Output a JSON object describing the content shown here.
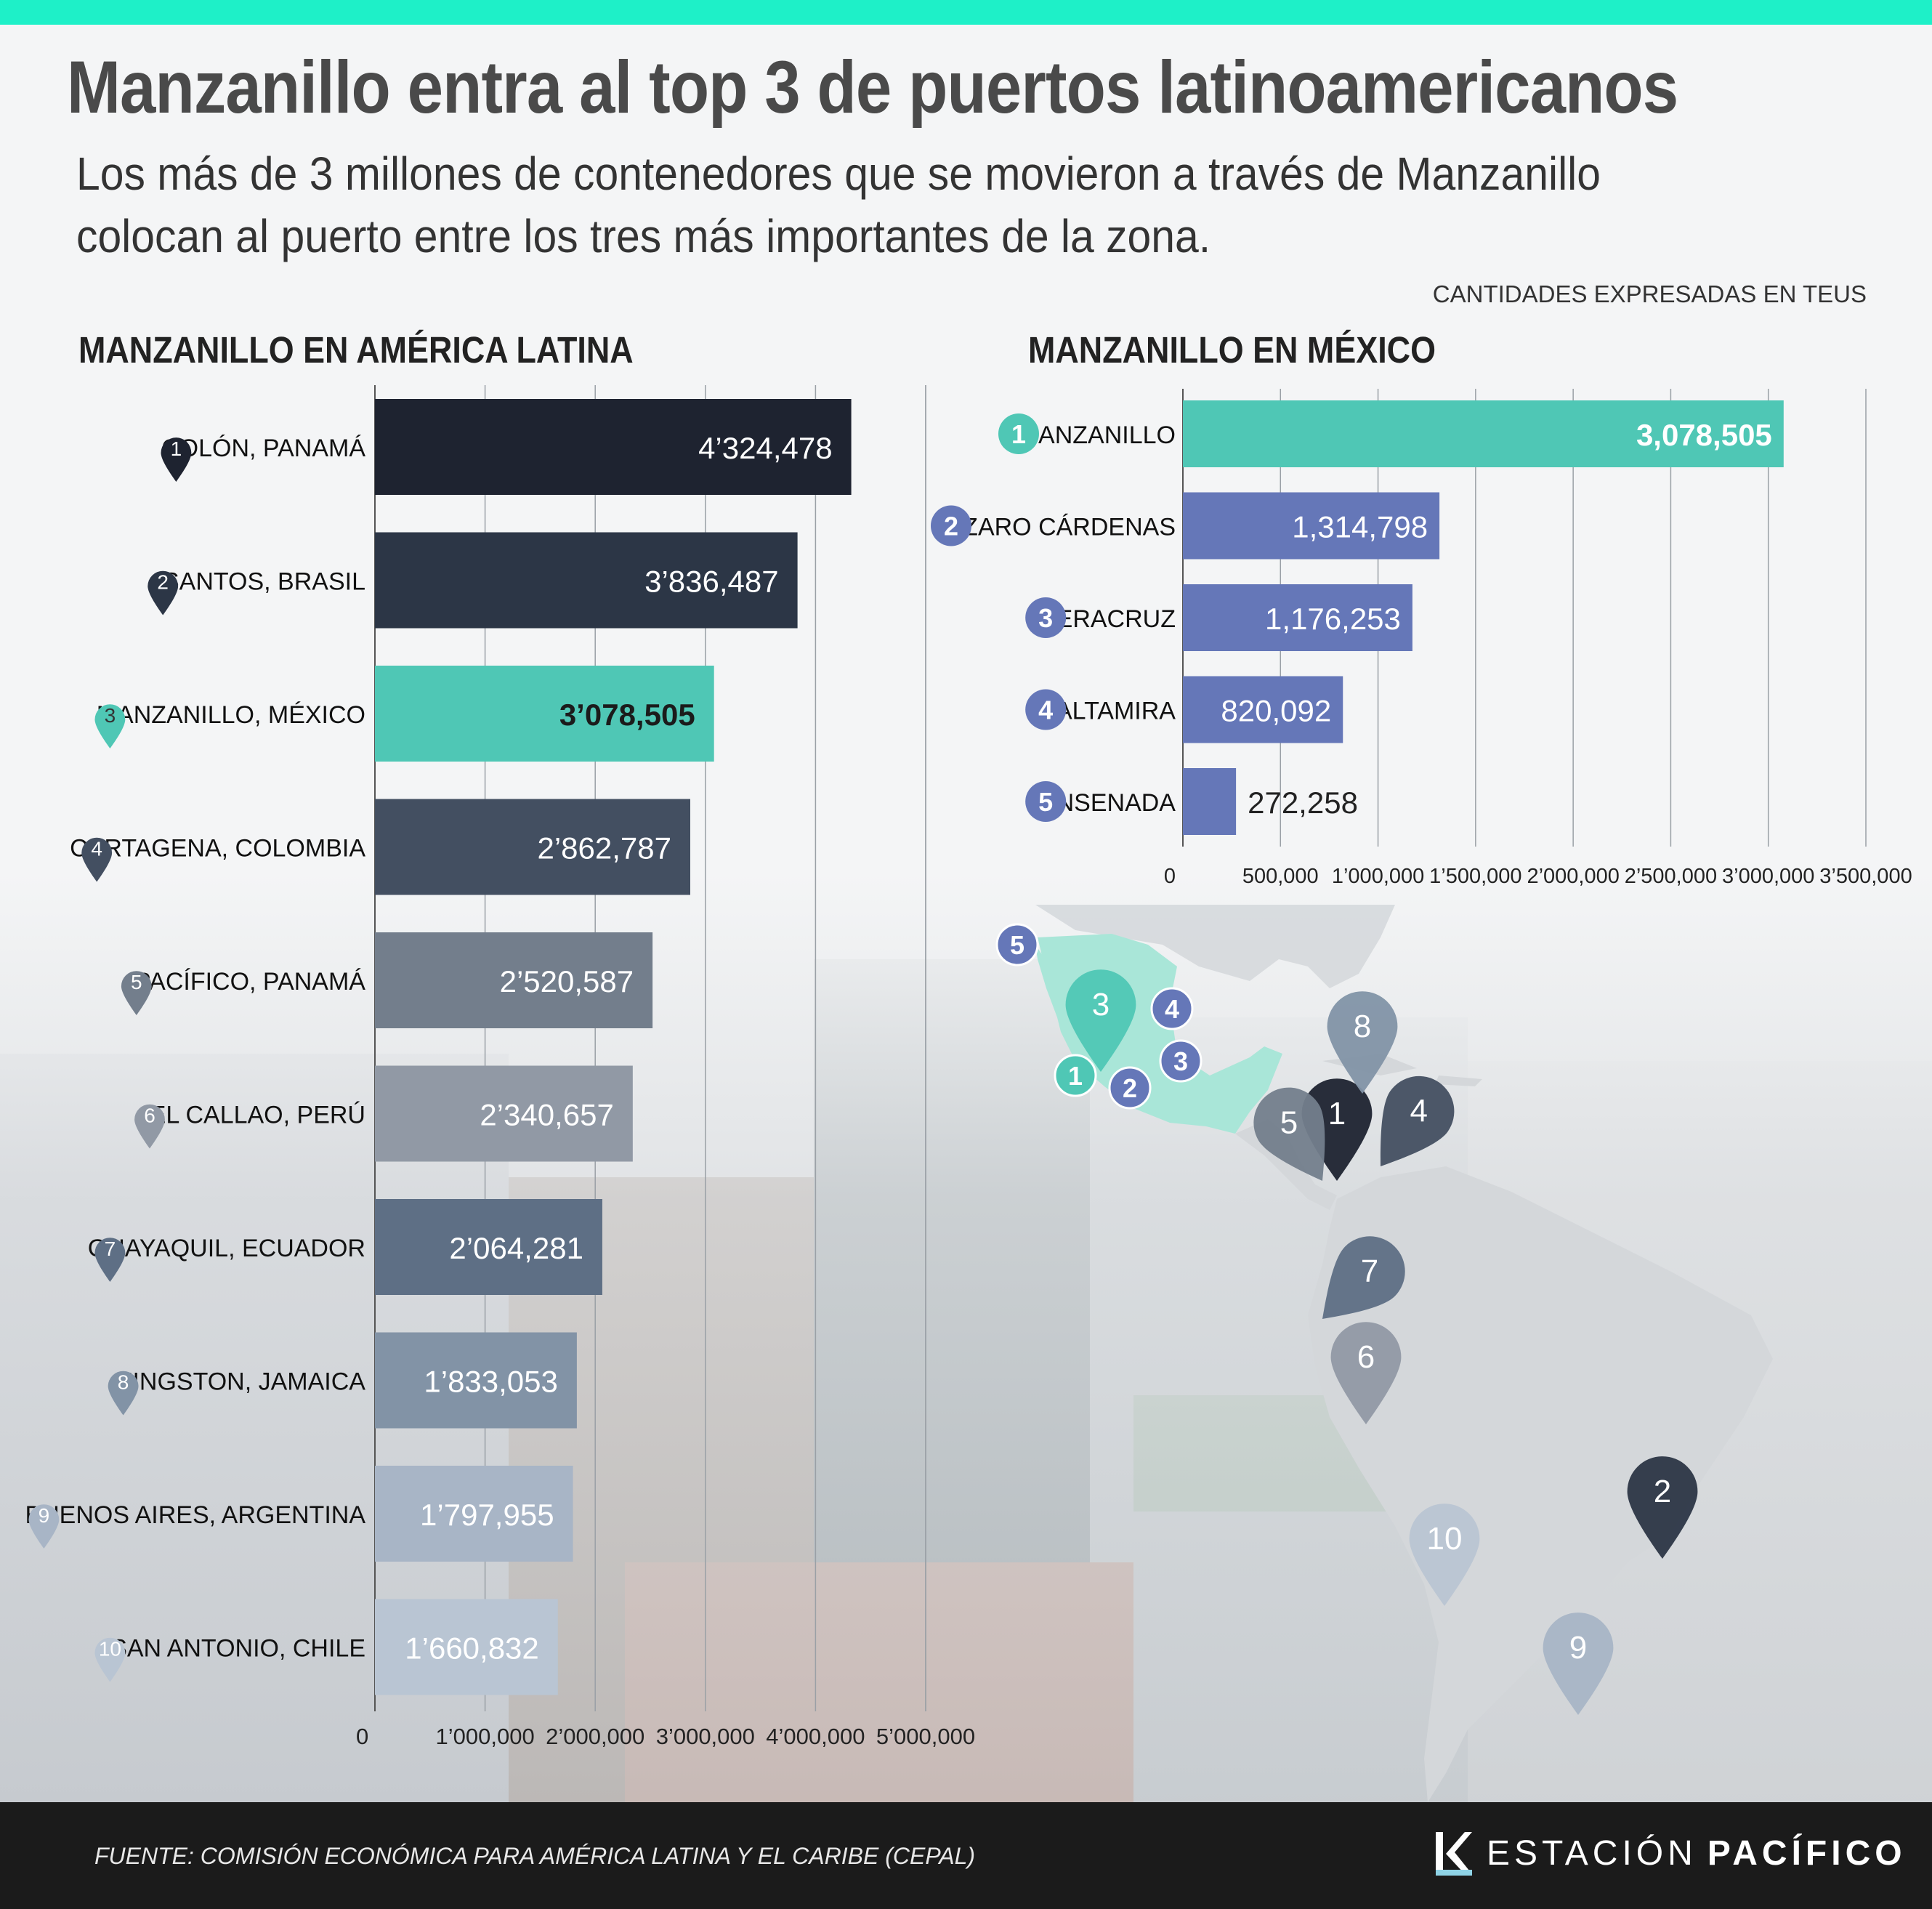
{
  "header": {
    "title": "Manzanillo entra al top 3 de puertos latinoamericanos",
    "subtitle": "Los más de 3 millones de contenedores que se movieron a través de Manzanillo colocan al puerto entre los tres más importantes de la zona.",
    "units_note": "CANTIDADES EXPRESADAS EN TEUS"
  },
  "colors": {
    "accent": "#4fc7b5",
    "top_bar": "#1ef0c8",
    "mexico_bars": "#6577b8",
    "footer": "#1b1b1b"
  },
  "chart_data": [
    {
      "type": "bar",
      "orientation": "horizontal",
      "title": "MANZANILLO EN AMÉRICA LATINA",
      "categories": [
        "COLÓN, PANAMÁ",
        "SANTOS, BRASIL",
        "MANZANILLO, MÉXICO",
        "CARTAGENA, COLOMBIA",
        "PACÍFICO, PANAMÁ",
        "EL CALLAO, PERÚ",
        "GUAYAQUIL, ECUADOR",
        "KINGSTON, JAMAICA",
        "BUENOS AIRES, ARGENTINA",
        "SAN ANTONIO, CHILE"
      ],
      "ranks": [
        "1",
        "2",
        "3",
        "4",
        "5",
        "6",
        "7",
        "8",
        "9",
        "10"
      ],
      "values": [
        4324478,
        3836487,
        3078505,
        2862787,
        2520587,
        2340657,
        2064281,
        1833053,
        1797955,
        1660832
      ],
      "value_labels": [
        "4’324,478",
        "3’836,487",
        "3’078,505",
        "2’862,787",
        "2’520,587",
        "2’340,657",
        "2’064,281",
        "1’833,053",
        "1’797,955",
        "1’660,832"
      ],
      "colors": [
        "#1e2330",
        "#2c3646",
        "#4fc7b5",
        "#434f61",
        "#737e8c",
        "#9199a5",
        "#5e6f85",
        "#8293a6",
        "#a8b5c6",
        "#b9c5d3"
      ],
      "highlight_index": 2,
      "xlim": [
        0,
        5000000
      ],
      "x_ticks": [
        "0",
        "1’000,000",
        "2’000,000",
        "3’000,000",
        "4’000,000",
        "5’000,000"
      ],
      "grid": true
    },
    {
      "type": "bar",
      "orientation": "horizontal",
      "title": "MANZANILLO EN MÉXICO",
      "categories": [
        "MANZANILLO",
        "LÁZARO CÁRDENAS",
        "VERACRUZ",
        "ALTAMIRA",
        "ENSENADA"
      ],
      "ranks": [
        "1",
        "2",
        "3",
        "4",
        "5"
      ],
      "values": [
        3078505,
        1314798,
        1176253,
        820092,
        272258
      ],
      "value_labels": [
        "3,078,505",
        "1,314,798",
        "1,176,253",
        "820,092",
        "272,258"
      ],
      "colors": [
        "#4fc7b5",
        "#6577b8",
        "#6577b8",
        "#6577b8",
        "#6577b8"
      ],
      "highlight_index": 0,
      "xlim": [
        0,
        3500000
      ],
      "x_ticks": [
        "0",
        "500,000",
        "1’000,000",
        "1’500,000",
        "2’000,000",
        "2’500,000",
        "3’000,000",
        "3’500,000"
      ],
      "grid": true
    }
  ],
  "map": {
    "latam_pins": [
      "1",
      "2",
      "3",
      "4",
      "5",
      "6",
      "7",
      "8",
      "9",
      "10"
    ],
    "mexico_pins": [
      "1",
      "2",
      "3",
      "4",
      "5"
    ]
  },
  "footer": {
    "source": "FUENTE: COMISIÓN ECONÓMICA PARA AMÉRICA LATINA Y EL CARIBE (CEPAL)",
    "brand_a": "ESTACIÓN",
    "brand_b": "PACÍFICO"
  }
}
